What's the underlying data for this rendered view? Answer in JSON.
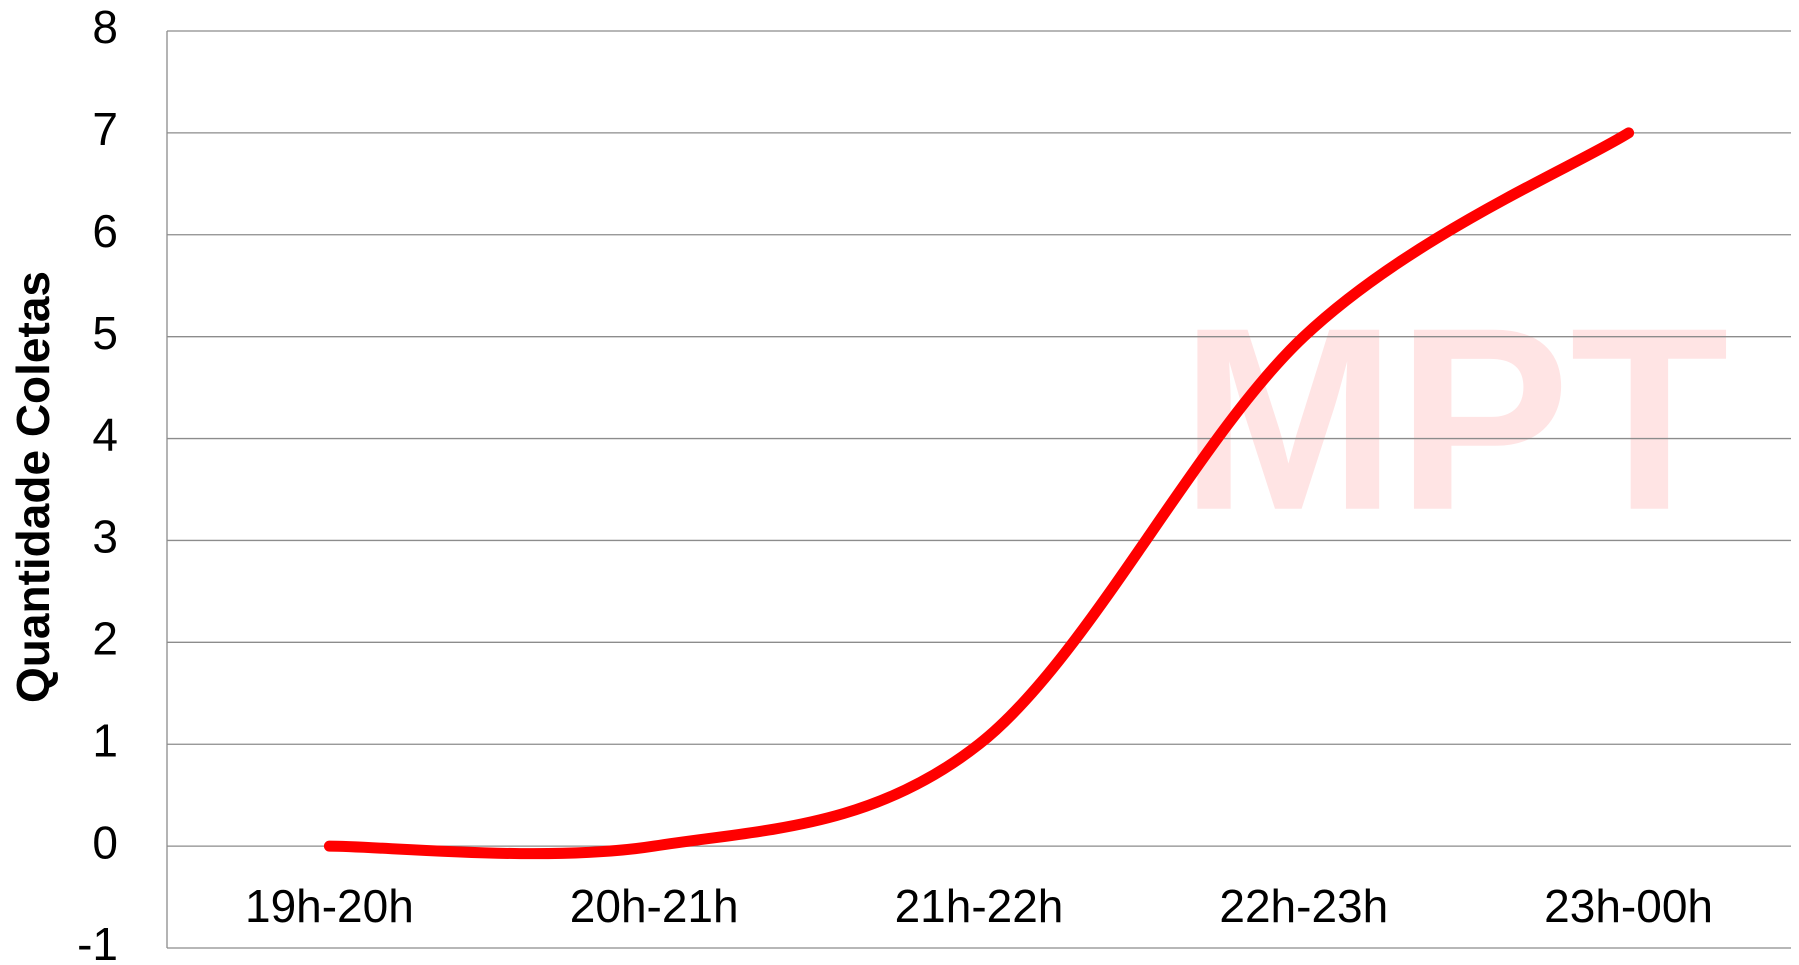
{
  "chart_data": {
    "type": "line",
    "watermark": "MPT",
    "y_label": "Quantidade Coletas",
    "categories": [
      "19h-20h",
      "20h-21h",
      "21h-22h",
      "22h-23h",
      "23h-00h"
    ],
    "values": [
      0,
      0,
      1,
      5,
      7
    ],
    "color": "#ff0000",
    "smooth": true,
    "ylim": [
      -1,
      8
    ],
    "yticks": [
      -1,
      0,
      1,
      2,
      3,
      4,
      5,
      6,
      7,
      8
    ],
    "grid": true
  }
}
